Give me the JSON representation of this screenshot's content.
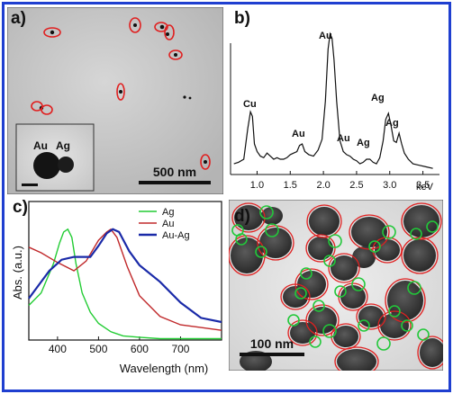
{
  "figure": {
    "border_color": "#1f3fd0",
    "panels": {
      "a": {
        "letter": "a)",
        "scale_bar": "500 nm",
        "inset": {
          "labels": [
            "Au",
            "Ag"
          ]
        },
        "highlight_color": "#e02020"
      },
      "b": {
        "letter": "b)",
        "peak_labels": [
          "Cu",
          "Au",
          "Au",
          "Au",
          "Ag",
          "Ag",
          "Ag"
        ],
        "x_ticks": [
          "1.0",
          "1.5",
          "2.0",
          "2.5",
          "3.0",
          "3.5"
        ],
        "x_unit": "keV"
      },
      "c": {
        "letter": "c)",
        "ylabel": "Abs. (a.u.)",
        "xlabel": "Wavelength (nm)",
        "x_ticks": [
          "400",
          "500",
          "600",
          "700"
        ]
      },
      "d": {
        "letter": "d)",
        "scale_bar": "100 nm",
        "ag_ring_color": "#22c83a",
        "au_ring_color": "#e02020"
      }
    }
  },
  "chart_data": [
    {
      "type": "line",
      "panel": "b",
      "title": "",
      "xlabel": "keV",
      "ylabel": "",
      "xlim": [
        0.6,
        3.75
      ],
      "ylim": [
        0,
        1
      ],
      "grid": false,
      "series": [
        {
          "name": "",
          "color": "#111111",
          "x": [
            0.65,
            0.72,
            0.8,
            0.86,
            0.9,
            0.93,
            0.96,
            1.0,
            1.05,
            1.1,
            1.15,
            1.2,
            1.25,
            1.3,
            1.35,
            1.4,
            1.45,
            1.5,
            1.55,
            1.6,
            1.64,
            1.68,
            1.72,
            1.78,
            1.85,
            1.92,
            1.98,
            2.03,
            2.07,
            2.1,
            2.13,
            2.16,
            2.2,
            2.25,
            2.3,
            2.35,
            2.4,
            2.45,
            2.5,
            2.55,
            2.6,
            2.65,
            2.7,
            2.75,
            2.8,
            2.85,
            2.9,
            2.94,
            2.98,
            3.02,
            3.06,
            3.1,
            3.14,
            3.18,
            3.22,
            3.28,
            3.35,
            3.45,
            3.55,
            3.65
          ],
          "y": [
            0.07,
            0.08,
            0.1,
            0.3,
            0.41,
            0.38,
            0.2,
            0.15,
            0.12,
            0.11,
            0.14,
            0.12,
            0.1,
            0.11,
            0.1,
            0.1,
            0.11,
            0.13,
            0.14,
            0.15,
            0.19,
            0.2,
            0.15,
            0.13,
            0.12,
            0.16,
            0.23,
            0.48,
            0.82,
            0.92,
            0.89,
            0.75,
            0.48,
            0.22,
            0.15,
            0.13,
            0.12,
            0.1,
            0.09,
            0.07,
            0.08,
            0.1,
            0.1,
            0.08,
            0.07,
            0.11,
            0.22,
            0.36,
            0.4,
            0.32,
            0.22,
            0.21,
            0.27,
            0.2,
            0.14,
            0.1,
            0.07,
            0.06,
            0.05,
            0.04
          ]
        }
      ]
    },
    {
      "type": "line",
      "panel": "c",
      "title": "",
      "xlabel": "Wavelength (nm)",
      "ylabel": "Abs. (a.u.)",
      "xlim": [
        330,
        800
      ],
      "ylim": [
        0,
        1
      ],
      "legend": "top-right",
      "grid": false,
      "series": [
        {
          "name": "Ag",
          "color": "#22cc33",
          "x": [
            330,
            360,
            390,
            405,
            415,
            425,
            435,
            445,
            460,
            480,
            500,
            530,
            560,
            600,
            650,
            700,
            800
          ],
          "y": [
            0.25,
            0.34,
            0.55,
            0.7,
            0.78,
            0.8,
            0.74,
            0.55,
            0.34,
            0.2,
            0.12,
            0.06,
            0.03,
            0.02,
            0.01,
            0.01,
            0.01
          ]
        },
        {
          "name": "Au",
          "color": "#c0282a",
          "x": [
            330,
            360,
            400,
            440,
            470,
            500,
            520,
            530,
            545,
            570,
            600,
            650,
            700,
            750,
            800
          ],
          "y": [
            0.67,
            0.63,
            0.56,
            0.5,
            0.57,
            0.72,
            0.78,
            0.8,
            0.74,
            0.53,
            0.32,
            0.17,
            0.11,
            0.09,
            0.07
          ]
        },
        {
          "name": "Au-Ag",
          "color": "#1a2aa8",
          "x": [
            330,
            350,
            380,
            410,
            440,
            460,
            480,
            500,
            520,
            535,
            550,
            575,
            600,
            650,
            700,
            750,
            800
          ],
          "y": [
            0.3,
            0.38,
            0.5,
            0.58,
            0.6,
            0.6,
            0.6,
            0.68,
            0.77,
            0.8,
            0.78,
            0.64,
            0.54,
            0.42,
            0.27,
            0.16,
            0.13
          ]
        }
      ]
    }
  ]
}
